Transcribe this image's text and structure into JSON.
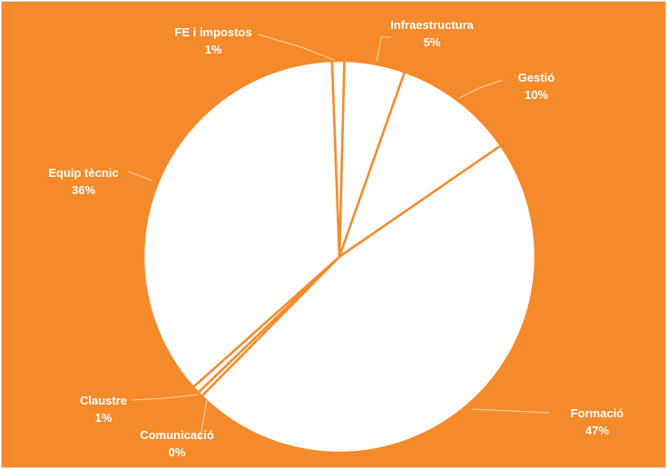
{
  "chart_data": {
    "type": "pie",
    "title": "",
    "background_color": "#F58A2B",
    "slice_color": "#FFFFFF",
    "label_color": "#FFFFFF",
    "slices": [
      {
        "name": "Infraestructura",
        "value": 5,
        "label": "5%"
      },
      {
        "name": "Gestió",
        "value": 10,
        "label": "10%"
      },
      {
        "name": "Formació",
        "value": 47,
        "label": "47%"
      },
      {
        "name": "Comunicació",
        "value": 0.4,
        "label": "0%"
      },
      {
        "name": "Claustre",
        "value": 0.6,
        "label": "1%"
      },
      {
        "name": "Equip tècnic",
        "value": 36,
        "label": "36%"
      },
      {
        "name": "FE i impostos",
        "value": 1,
        "label": "1%"
      }
    ]
  }
}
